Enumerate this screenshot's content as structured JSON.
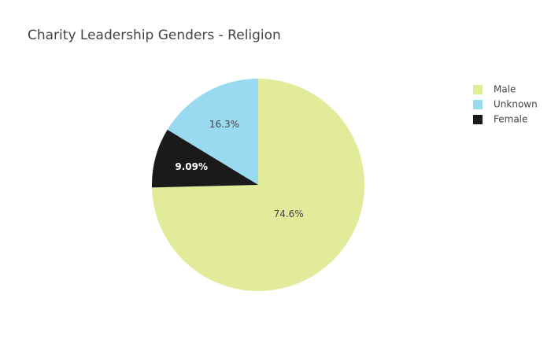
{
  "chart_data": {
    "type": "pie",
    "title": "Charity Leadership Genders - Religion",
    "categories": [
      "Male",
      "Unknown",
      "Female"
    ],
    "values": [
      74.6,
      16.3,
      9.09
    ],
    "value_labels": [
      "74.6%",
      "16.3%",
      "9.09%"
    ],
    "colors": [
      "#e1eb9a",
      "#9adaf0",
      "#1a1a1a"
    ],
    "legend": "top-right"
  }
}
